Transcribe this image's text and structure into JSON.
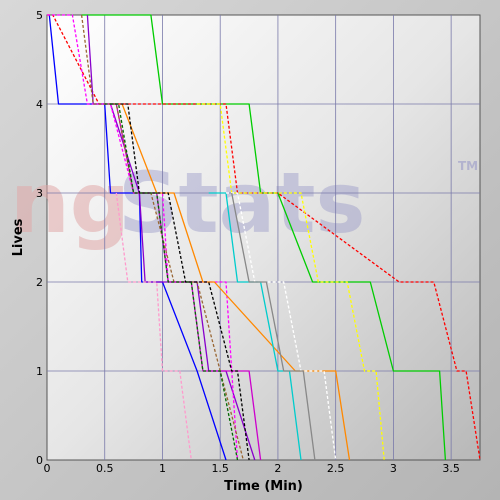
{
  "chart_data": {
    "type": "line",
    "title": "",
    "xlabel": "Time (Min)",
    "ylabel": "Lives",
    "xlim": [
      0,
      3.75
    ],
    "ylim": [
      0,
      5
    ],
    "x_ticks": [
      "0",
      "0.5",
      "1",
      "1.5",
      "2",
      "2.5",
      "3",
      "3.5"
    ],
    "y_ticks": [
      "0",
      "1",
      "2",
      "3",
      "4",
      "5"
    ],
    "grid": true,
    "watermark": {
      "left": "ng",
      "right": "Stats",
      "mark": "TM"
    },
    "series": [
      {
        "color": "#0000ff",
        "dash": false,
        "x": [
          0.02,
          0.1,
          0.5,
          0.55,
          0.8,
          0.82,
          1.0,
          1.3,
          1.55
        ],
        "y": [
          5,
          4,
          4,
          3,
          3,
          2,
          2,
          1,
          0
        ]
      },
      {
        "color": "#00cc00",
        "dash": false,
        "x": [
          0.3,
          0.9,
          1.0,
          1.5,
          1.75,
          1.85,
          2.0,
          2.3,
          2.8,
          3.0,
          3.1,
          3.4,
          3.45
        ],
        "y": [
          5,
          5,
          4,
          4,
          4,
          3,
          3,
          2,
          2,
          1,
          1,
          1,
          0
        ]
      },
      {
        "color": "#ff0000",
        "dash": true,
        "x": [
          0.0,
          0.05,
          0.45,
          1.55,
          1.65,
          2.0,
          3.05,
          3.35,
          3.55,
          3.63,
          3.75
        ],
        "y": [
          5,
          5,
          4,
          4,
          3,
          3,
          2,
          2,
          1,
          1,
          0
        ]
      },
      {
        "color": "#8800cc",
        "dash": false,
        "x": [
          0.35,
          0.4,
          0.55,
          0.8,
          0.85,
          1.3,
          1.4,
          1.55,
          1.8
        ],
        "y": [
          5,
          4,
          4,
          3,
          2,
          2,
          1,
          1,
          0
        ]
      },
      {
        "color": "#ff00ff",
        "dash": true,
        "x": [
          0.0,
          0.22,
          0.35,
          0.55,
          0.75,
          1.0,
          1.05,
          1.55,
          1.65
        ],
        "y": [
          5,
          5,
          4,
          4,
          3,
          3,
          2,
          2,
          0
        ]
      },
      {
        "color": "#cc00cc",
        "dash": false,
        "x": [
          0.55,
          0.6,
          0.75,
          0.95,
          1.05,
          1.25,
          1.35,
          1.75,
          1.85
        ],
        "y": [
          4,
          4,
          3,
          3,
          2,
          2,
          1,
          1,
          0
        ]
      },
      {
        "color": "#ff8800",
        "dash": false,
        "x": [
          0.65,
          0.95,
          1.1,
          1.35,
          1.45,
          2.15,
          2.28,
          2.5,
          2.62
        ],
        "y": [
          4,
          3,
          3,
          2,
          2,
          1,
          1,
          1,
          0
        ]
      },
      {
        "color": "#996633",
        "dash": true,
        "x": [
          0.3,
          0.4,
          0.6,
          0.75,
          0.9,
          1.1,
          1.3,
          1.5,
          1.7
        ],
        "y": [
          5,
          4,
          4,
          3,
          3,
          2,
          2,
          1,
          0
        ]
      },
      {
        "color": "#000000",
        "dash": true,
        "x": [
          0.55,
          0.7,
          0.8,
          1.05,
          1.2,
          1.4,
          1.6,
          1.65,
          1.75
        ],
        "y": [
          4,
          4,
          3,
          3,
          2,
          2,
          1,
          1,
          0
        ]
      },
      {
        "color": "#006600",
        "dash": true,
        "x": [
          0.5,
          0.62,
          0.75,
          0.95,
          1.05,
          1.25,
          1.35,
          1.5,
          1.65
        ],
        "y": [
          4,
          4,
          3,
          3,
          2,
          2,
          1,
          1,
          0
        ]
      },
      {
        "color": "#ffff00",
        "dash": true,
        "x": [
          1.3,
          1.5,
          1.6,
          2.2,
          2.35,
          2.6,
          2.75,
          2.85,
          2.92
        ],
        "y": [
          4,
          4,
          3,
          3,
          2,
          2,
          1,
          1,
          0
        ]
      },
      {
        "color": "#00cccc",
        "dash": false,
        "x": [
          1.4,
          1.55,
          1.65,
          1.85,
          2.0,
          2.1,
          2.2
        ],
        "y": [
          3,
          3,
          2,
          2,
          1,
          1,
          0
        ]
      },
      {
        "color": "#ffffff",
        "dash": true,
        "x": [
          1.55,
          1.65,
          1.8,
          2.05,
          2.2,
          2.4,
          2.5
        ],
        "y": [
          3,
          3,
          2,
          2,
          1,
          1,
          0
        ]
      },
      {
        "color": "#ff99cc",
        "dash": true,
        "x": [
          0.6,
          0.7,
          0.95,
          1.0,
          1.15,
          1.25
        ],
        "y": [
          3,
          2,
          2,
          1,
          1,
          0
        ]
      },
      {
        "color": "#888888",
        "dash": false,
        "x": [
          1.6,
          1.75,
          1.9,
          2.05,
          2.22,
          2.32
        ],
        "y": [
          3,
          2,
          2,
          1,
          1,
          0
        ]
      }
    ]
  }
}
